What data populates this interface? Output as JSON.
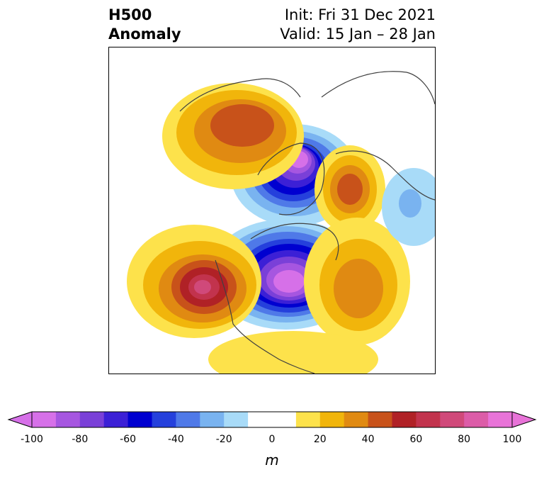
{
  "title": {
    "left_line1": "H500",
    "left_line2": "Anomaly",
    "right_line1": "Init: Fri 31 Dec 2021",
    "right_line2": "Valid: 15 Jan – 28 Jan"
  },
  "colorbar": {
    "unit_label": "m",
    "range": [
      -100,
      100
    ],
    "step": 10,
    "extend": "both",
    "tick_labels": [
      "-100",
      "-80",
      "-60",
      "-40",
      "-20",
      "0",
      "20",
      "40",
      "60",
      "80",
      "100"
    ],
    "colors": [
      "#d670e8",
      "#a656e0",
      "#7a40d8",
      "#3c20d6",
      "#0000d0",
      "#2540dc",
      "#4f79e8",
      "#79b3f0",
      "#a8dbf8",
      "#ffffff",
      "#ffffff",
      "#fde24b",
      "#f1b50b",
      "#e08a12",
      "#c8521a",
      "#b02126",
      "#c2334d",
      "#d0497a",
      "#dc5ca8",
      "#e873d8"
    ]
  },
  "map": {
    "projection": "north-polar-stereographic",
    "field": "500 hPa geopotential height anomaly",
    "features": [
      {
        "name": "negative anomaly",
        "region": "Greenland / Canadian Arctic",
        "peak_value": -100
      },
      {
        "name": "negative anomaly",
        "region": "central Canada / Hudson Bay",
        "peak_value": -100
      },
      {
        "name": "positive anomaly",
        "region": "northeast Pacific / US West Coast",
        "peak_value": 70
      },
      {
        "name": "positive anomaly",
        "region": "Scandinavia / Arctic Europe",
        "peak_value": 60
      },
      {
        "name": "positive anomaly",
        "region": "western Russia",
        "peak_value": 60
      },
      {
        "name": "positive anomaly",
        "region": "North Atlantic",
        "peak_value": 40
      },
      {
        "name": "negative anomaly",
        "region": "central Asia",
        "peak_value": -30
      }
    ]
  }
}
